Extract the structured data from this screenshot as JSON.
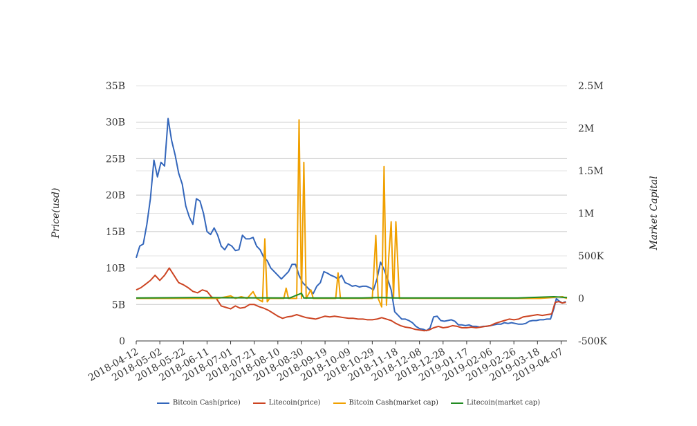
{
  "chart_data": {
    "type": "line",
    "title": "",
    "xlabel": "",
    "ylabel_left": "Price(usd)",
    "ylabel_right": "Market Capital",
    "x_ticks": [
      "2018-04-12",
      "2018-05-02",
      "2018-05-22",
      "2018-06-11",
      "2018-07-01",
      "2018-07-21",
      "2018-08-10",
      "2018-08-30",
      "2018-09-19",
      "2018-10-09",
      "2018-10-29",
      "2018-11-18",
      "2018-12-08",
      "2018-12-28",
      "2019-01-17",
      "2019-02-06",
      "2019-02-26",
      "2019-03-18",
      "2019-04-07"
    ],
    "x_range": [
      "2018-04-12",
      "2019-04-12"
    ],
    "y_left": {
      "ticks": [
        "0",
        "5B",
        "10B",
        "15B",
        "20B",
        "25B",
        "30B",
        "35B"
      ],
      "range": [
        0,
        35
      ]
    },
    "y_right": {
      "ticks": [
        "-500K",
        "0",
        "500K",
        "1M",
        "1.5M",
        "2M",
        "2.5M"
      ],
      "range": [
        -500,
        2500
      ]
    },
    "legend_position": "bottom",
    "grid": true,
    "series": [
      {
        "name": "Bitcoin Cash(price)",
        "axis": "left",
        "color": "#3366bb",
        "points": [
          [
            "2018-04-12",
            11.4
          ],
          [
            "2018-04-15",
            13.0
          ],
          [
            "2018-04-18",
            13.3
          ],
          [
            "2018-04-21",
            16.0
          ],
          [
            "2018-04-24",
            19.5
          ],
          [
            "2018-04-27",
            24.8
          ],
          [
            "2018-04-30",
            22.5
          ],
          [
            "2018-05-03",
            24.5
          ],
          [
            "2018-05-06",
            24.0
          ],
          [
            "2018-05-09",
            30.5
          ],
          [
            "2018-05-12",
            27.5
          ],
          [
            "2018-05-15",
            25.5
          ],
          [
            "2018-05-18",
            23.0
          ],
          [
            "2018-05-21",
            21.5
          ],
          [
            "2018-05-24",
            18.5
          ],
          [
            "2018-05-27",
            17.0
          ],
          [
            "2018-05-30",
            16.0
          ],
          [
            "2018-06-02",
            19.5
          ],
          [
            "2018-06-05",
            19.2
          ],
          [
            "2018-06-08",
            17.5
          ],
          [
            "2018-06-11",
            15.0
          ],
          [
            "2018-06-14",
            14.6
          ],
          [
            "2018-06-17",
            15.5
          ],
          [
            "2018-06-20",
            14.5
          ],
          [
            "2018-06-23",
            13.0
          ],
          [
            "2018-06-26",
            12.5
          ],
          [
            "2018-06-29",
            13.3
          ],
          [
            "2018-07-02",
            13.0
          ],
          [
            "2018-07-05",
            12.4
          ],
          [
            "2018-07-08",
            12.5
          ],
          [
            "2018-07-11",
            14.5
          ],
          [
            "2018-07-14",
            14.0
          ],
          [
            "2018-07-17",
            14.0
          ],
          [
            "2018-07-20",
            14.2
          ],
          [
            "2018-07-23",
            13.0
          ],
          [
            "2018-07-26",
            12.5
          ],
          [
            "2018-07-29",
            11.5
          ],
          [
            "2018-08-01",
            11.0
          ],
          [
            "2018-08-04",
            10.0
          ],
          [
            "2018-08-07",
            9.5
          ],
          [
            "2018-08-10",
            9.0
          ],
          [
            "2018-08-13",
            8.5
          ],
          [
            "2018-08-16",
            9.0
          ],
          [
            "2018-08-19",
            9.5
          ],
          [
            "2018-08-22",
            10.5
          ],
          [
            "2018-08-25",
            10.5
          ],
          [
            "2018-08-28",
            9.0
          ],
          [
            "2018-08-31",
            8.0
          ],
          [
            "2018-09-03",
            7.5
          ],
          [
            "2018-09-06",
            7.0
          ],
          [
            "2018-09-09",
            6.5
          ],
          [
            "2018-09-12",
            7.5
          ],
          [
            "2018-09-15",
            8.0
          ],
          [
            "2018-09-18",
            9.5
          ],
          [
            "2018-09-21",
            9.3
          ],
          [
            "2018-09-24",
            9.0
          ],
          [
            "2018-09-27",
            8.8
          ],
          [
            "2018-09-30",
            8.5
          ],
          [
            "2018-10-03",
            9.0
          ],
          [
            "2018-10-06",
            8.0
          ],
          [
            "2018-10-09",
            7.8
          ],
          [
            "2018-10-12",
            7.5
          ],
          [
            "2018-10-15",
            7.6
          ],
          [
            "2018-10-18",
            7.4
          ],
          [
            "2018-10-21",
            7.5
          ],
          [
            "2018-10-24",
            7.5
          ],
          [
            "2018-10-27",
            7.3
          ],
          [
            "2018-10-30",
            7.0
          ],
          [
            "2018-11-02",
            8.5
          ],
          [
            "2018-11-05",
            10.8
          ],
          [
            "2018-11-08",
            9.8
          ],
          [
            "2018-11-11",
            8.5
          ],
          [
            "2018-11-14",
            7.0
          ],
          [
            "2018-11-17",
            4.0
          ],
          [
            "2018-11-20",
            3.5
          ],
          [
            "2018-11-23",
            3.0
          ],
          [
            "2018-11-26",
            3.0
          ],
          [
            "2018-11-29",
            2.8
          ],
          [
            "2018-12-02",
            2.5
          ],
          [
            "2018-12-05",
            2.0
          ],
          [
            "2018-12-08",
            1.7
          ],
          [
            "2018-12-11",
            1.6
          ],
          [
            "2018-12-14",
            1.4
          ],
          [
            "2018-12-17",
            1.8
          ],
          [
            "2018-12-20",
            3.3
          ],
          [
            "2018-12-23",
            3.4
          ],
          [
            "2018-12-26",
            2.8
          ],
          [
            "2018-12-29",
            2.7
          ],
          [
            "2019-01-01",
            2.8
          ],
          [
            "2019-01-04",
            2.9
          ],
          [
            "2019-01-07",
            2.7
          ],
          [
            "2019-01-10",
            2.2
          ],
          [
            "2019-01-13",
            2.2
          ],
          [
            "2019-01-16",
            2.1
          ],
          [
            "2019-01-19",
            2.2
          ],
          [
            "2019-01-22",
            2.0
          ],
          [
            "2019-01-25",
            2.0
          ],
          [
            "2019-01-28",
            1.9
          ],
          [
            "2019-01-31",
            2.0
          ],
          [
            "2019-02-03",
            2.0
          ],
          [
            "2019-02-06",
            2.1
          ],
          [
            "2019-02-09",
            2.2
          ],
          [
            "2019-02-12",
            2.3
          ],
          [
            "2019-02-15",
            2.3
          ],
          [
            "2019-02-18",
            2.5
          ],
          [
            "2019-02-21",
            2.4
          ],
          [
            "2019-02-24",
            2.5
          ],
          [
            "2019-02-27",
            2.4
          ],
          [
            "2019-03-02",
            2.3
          ],
          [
            "2019-03-05",
            2.3
          ],
          [
            "2019-03-08",
            2.4
          ],
          [
            "2019-03-11",
            2.7
          ],
          [
            "2019-03-14",
            2.8
          ],
          [
            "2019-03-17",
            2.8
          ],
          [
            "2019-03-20",
            2.9
          ],
          [
            "2019-03-23",
            2.9
          ],
          [
            "2019-03-26",
            3.0
          ],
          [
            "2019-03-29",
            3.0
          ],
          [
            "2019-04-01",
            4.5
          ],
          [
            "2019-04-03",
            5.8
          ],
          [
            "2019-04-05",
            5.5
          ],
          [
            "2019-04-08",
            5.2
          ],
          [
            "2019-04-11",
            5.4
          ]
        ]
      },
      {
        "name": "Litecoin(price)",
        "axis": "left",
        "color": "#cc4422",
        "points": [
          [
            "2018-04-12",
            7.0
          ],
          [
            "2018-04-16",
            7.3
          ],
          [
            "2018-04-20",
            7.8
          ],
          [
            "2018-04-24",
            8.3
          ],
          [
            "2018-04-28",
            9.0
          ],
          [
            "2018-05-02",
            8.3
          ],
          [
            "2018-05-06",
            9.0
          ],
          [
            "2018-05-10",
            10.0
          ],
          [
            "2018-05-14",
            9.0
          ],
          [
            "2018-05-18",
            8.0
          ],
          [
            "2018-05-22",
            7.7
          ],
          [
            "2018-05-26",
            7.3
          ],
          [
            "2018-05-30",
            6.8
          ],
          [
            "2018-06-03",
            6.6
          ],
          [
            "2018-06-07",
            7.0
          ],
          [
            "2018-06-11",
            6.8
          ],
          [
            "2018-06-15",
            6.0
          ],
          [
            "2018-06-19",
            5.8
          ],
          [
            "2018-06-23",
            4.8
          ],
          [
            "2018-06-27",
            4.6
          ],
          [
            "2018-07-01",
            4.4
          ],
          [
            "2018-07-05",
            4.8
          ],
          [
            "2018-07-09",
            4.5
          ],
          [
            "2018-07-13",
            4.6
          ],
          [
            "2018-07-17",
            5.0
          ],
          [
            "2018-07-21",
            5.0
          ],
          [
            "2018-07-25",
            4.7
          ],
          [
            "2018-07-29",
            4.5
          ],
          [
            "2018-08-02",
            4.2
          ],
          [
            "2018-08-06",
            3.8
          ],
          [
            "2018-08-10",
            3.4
          ],
          [
            "2018-08-14",
            3.1
          ],
          [
            "2018-08-18",
            3.3
          ],
          [
            "2018-08-22",
            3.4
          ],
          [
            "2018-08-26",
            3.6
          ],
          [
            "2018-08-30",
            3.4
          ],
          [
            "2018-09-03",
            3.2
          ],
          [
            "2018-09-07",
            3.1
          ],
          [
            "2018-09-11",
            3.0
          ],
          [
            "2018-09-15",
            3.2
          ],
          [
            "2018-09-19",
            3.4
          ],
          [
            "2018-09-23",
            3.3
          ],
          [
            "2018-09-27",
            3.4
          ],
          [
            "2018-10-01",
            3.3
          ],
          [
            "2018-10-05",
            3.2
          ],
          [
            "2018-10-09",
            3.1
          ],
          [
            "2018-10-13",
            3.1
          ],
          [
            "2018-10-17",
            3.0
          ],
          [
            "2018-10-21",
            3.0
          ],
          [
            "2018-10-25",
            2.9
          ],
          [
            "2018-10-29",
            2.9
          ],
          [
            "2018-11-02",
            3.0
          ],
          [
            "2018-11-06",
            3.2
          ],
          [
            "2018-11-10",
            3.0
          ],
          [
            "2018-11-14",
            2.8
          ],
          [
            "2018-11-18",
            2.4
          ],
          [
            "2018-11-22",
            2.1
          ],
          [
            "2018-11-26",
            1.9
          ],
          [
            "2018-11-30",
            1.8
          ],
          [
            "2018-12-04",
            1.6
          ],
          [
            "2018-12-08",
            1.5
          ],
          [
            "2018-12-12",
            1.4
          ],
          [
            "2018-12-16",
            1.5
          ],
          [
            "2018-12-20",
            1.8
          ],
          [
            "2018-12-24",
            2.0
          ],
          [
            "2018-12-28",
            1.8
          ],
          [
            "2019-01-01",
            1.9
          ],
          [
            "2019-01-05",
            2.1
          ],
          [
            "2019-01-09",
            2.0
          ],
          [
            "2019-01-13",
            1.8
          ],
          [
            "2019-01-17",
            1.8
          ],
          [
            "2019-01-21",
            1.9
          ],
          [
            "2019-01-25",
            1.8
          ],
          [
            "2019-01-29",
            1.9
          ],
          [
            "2019-02-02",
            2.0
          ],
          [
            "2019-02-06",
            2.1
          ],
          [
            "2019-02-10",
            2.4
          ],
          [
            "2019-02-14",
            2.6
          ],
          [
            "2019-02-18",
            2.8
          ],
          [
            "2019-02-22",
            3.0
          ],
          [
            "2019-02-26",
            2.9
          ],
          [
            "2019-03-02",
            3.0
          ],
          [
            "2019-03-06",
            3.3
          ],
          [
            "2019-03-10",
            3.4
          ],
          [
            "2019-03-14",
            3.5
          ],
          [
            "2019-03-18",
            3.6
          ],
          [
            "2019-03-22",
            3.5
          ],
          [
            "2019-03-26",
            3.6
          ],
          [
            "2019-03-30",
            3.7
          ],
          [
            "2019-04-02",
            5.3
          ],
          [
            "2019-04-05",
            5.4
          ],
          [
            "2019-04-08",
            5.2
          ],
          [
            "2019-04-11",
            5.3
          ]
        ]
      },
      {
        "name": "Bitcoin Cash(market cap)",
        "axis": "right",
        "color": "#f0a000",
        "points": [
          [
            "2018-04-12",
            0
          ],
          [
            "2018-05-15",
            0
          ],
          [
            "2018-06-20",
            0
          ],
          [
            "2018-07-01",
            30
          ],
          [
            "2018-07-05",
            0
          ],
          [
            "2018-07-10",
            20
          ],
          [
            "2018-07-15",
            0
          ],
          [
            "2018-07-20",
            80
          ],
          [
            "2018-07-23",
            0
          ],
          [
            "2018-07-28",
            -40
          ],
          [
            "2018-07-30",
            700
          ],
          [
            "2018-08-01",
            -40
          ],
          [
            "2018-08-03",
            0
          ],
          [
            "2018-08-15",
            0
          ],
          [
            "2018-08-17",
            120
          ],
          [
            "2018-08-19",
            0
          ],
          [
            "2018-08-26",
            0
          ],
          [
            "2018-08-28",
            2100
          ],
          [
            "2018-08-30",
            0
          ],
          [
            "2018-09-01",
            1600
          ],
          [
            "2018-09-03",
            0
          ],
          [
            "2018-09-07",
            100
          ],
          [
            "2018-09-09",
            0
          ],
          [
            "2018-09-28",
            0
          ],
          [
            "2018-09-30",
            300
          ],
          [
            "2018-10-02",
            0
          ],
          [
            "2018-10-29",
            0
          ],
          [
            "2018-11-01",
            740
          ],
          [
            "2018-11-03",
            0
          ],
          [
            "2018-11-06",
            -100
          ],
          [
            "2018-11-08",
            1550
          ],
          [
            "2018-11-10",
            -80
          ],
          [
            "2018-11-12",
            500
          ],
          [
            "2018-11-14",
            900
          ],
          [
            "2018-11-16",
            0
          ],
          [
            "2018-11-18",
            900
          ],
          [
            "2018-11-21",
            0
          ],
          [
            "2019-02-01",
            0
          ],
          [
            "2019-03-20",
            0
          ],
          [
            "2019-04-08",
            20
          ],
          [
            "2019-04-12",
            0
          ]
        ]
      },
      {
        "name": "Litecoin(market cap)",
        "axis": "right",
        "color": "#228b22",
        "points": [
          [
            "2018-04-12",
            5
          ],
          [
            "2018-06-01",
            10
          ],
          [
            "2018-08-20",
            5
          ],
          [
            "2018-08-30",
            60
          ],
          [
            "2018-09-01",
            5
          ],
          [
            "2018-10-20",
            5
          ],
          [
            "2018-11-05",
            10
          ],
          [
            "2018-11-18",
            5
          ],
          [
            "2019-01-20",
            5
          ],
          [
            "2019-03-01",
            5
          ],
          [
            "2019-04-01",
            20
          ],
          [
            "2019-04-12",
            10
          ]
        ]
      }
    ]
  }
}
